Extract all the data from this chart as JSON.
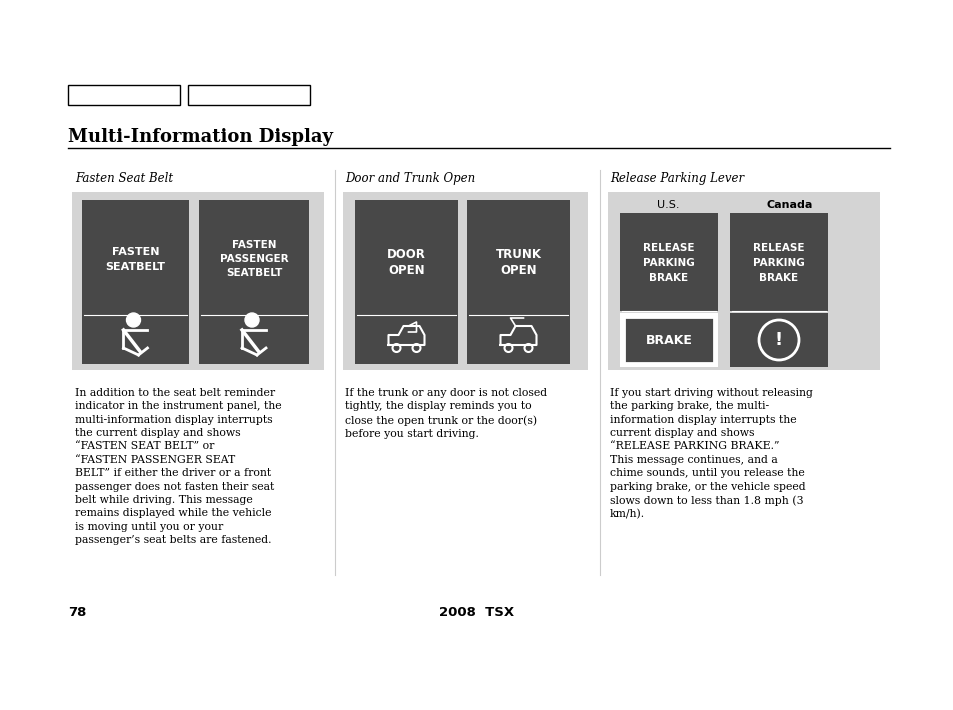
{
  "page_num": "78",
  "center_text": "2008  TSX",
  "title": "Multi-Information Display",
  "bg_color": "#ffffff",
  "section_bg": "#d4d4d4",
  "dark_box": "#484848",
  "text_white": "#ffffff",
  "text_black": "#000000",
  "divider_color": "#888888",
  "section1_title": "Fasten Seat Belt",
  "section2_title": "Door and Trunk Open",
  "section3_title": "Release Parking Lever",
  "us_label": "U.S.",
  "canada_label": "Canada",
  "brake_text": "BRAKE",
  "text1": "In addition to the seat belt reminder\nindicator in the instrument panel, the\nmulti-information display interrupts\nthe current display and shows\n“FASTEN SEAT BELT” or\n“FASTEN PASSENGER SEAT\nBELT” if either the driver or a front\npassenger does not fasten their seat\nbelt while driving. This message\nremains displayed while the vehicle\nis moving until you or your\npassenger’s seat belts are fastened.",
  "text2": "If the trunk or any door is not closed\ntightly, the display reminds you to\nclose the open trunk or the door(s)\nbefore you start driving.",
  "text3": "If you start driving without releasing\nthe parking brake, the multi-\ninformation display interrupts the\ncurrent display and shows\n“RELEASE PARKING BRAKE.”\nThis message continues, and a\nchime sounds, until you release the\nparking brake, or the vehicle speed\nslows down to less than 1.8 mph (3\nkm/h)."
}
